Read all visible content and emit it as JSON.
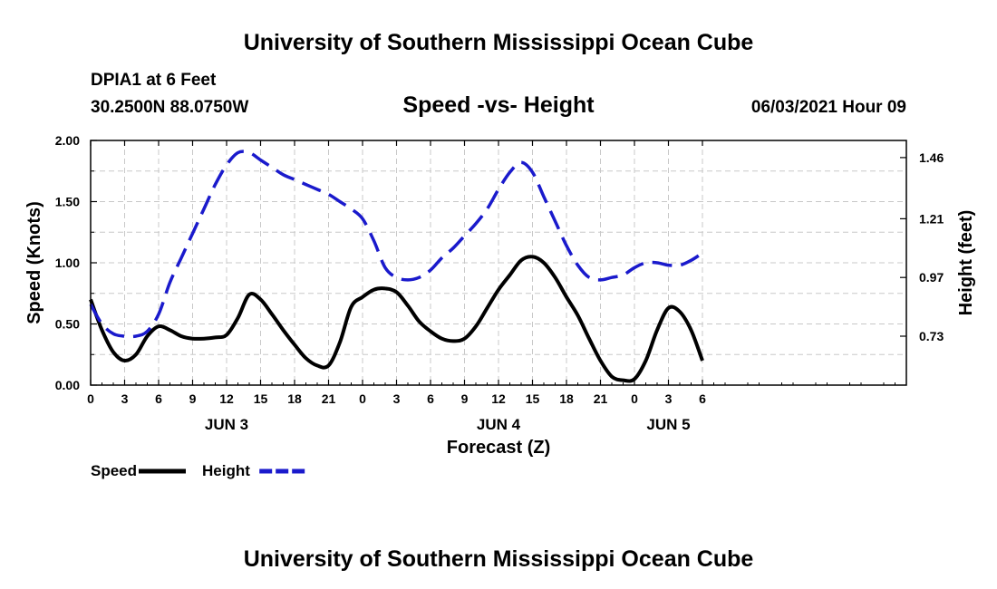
{
  "header": {
    "title": "University of Southern Mississippi Ocean Cube",
    "station": "DPIA1 at 6 Feet",
    "coords": "30.2500N  88.0750W",
    "timestamp": "06/03/2021 Hour 09",
    "footer_title": "University of Southern Mississippi Ocean Cube"
  },
  "chart_data": {
    "type": "line",
    "title": "Speed -vs- Height",
    "xlabel": "Forecast (Z)",
    "ylabel": "Speed (Knots)",
    "y2label": "Height (feet)",
    "xlim": [
      0,
      72
    ],
    "ylim": [
      0,
      2
    ],
    "y2lim": [
      0.53,
      1.53
    ],
    "x_ticks": [
      0,
      3,
      6,
      9,
      12,
      15,
      18,
      21,
      24,
      27,
      30,
      33,
      36,
      39,
      42,
      45,
      48,
      51,
      54
    ],
    "x_tick_labels": [
      "0",
      "3",
      "6",
      "9",
      "12",
      "15",
      "18",
      "21",
      "0",
      "3",
      "6",
      "9",
      "12",
      "15",
      "18",
      "21",
      "0",
      "3",
      "6"
    ],
    "y_ticks": [
      0,
      0.5,
      1,
      1.5,
      2
    ],
    "y_tick_labels": [
      "0.00",
      "0.50",
      "1.00",
      "1.50",
      "2.00"
    ],
    "y2_ticks": [
      0.73,
      0.97,
      1.21,
      1.46
    ],
    "y2_tick_labels": [
      "0.73",
      "0.97",
      "1.21",
      "1.46"
    ],
    "date_labels": [
      {
        "label": "JUN 3",
        "hour": 12
      },
      {
        "label": "JUN 4",
        "hour": 36
      },
      {
        "label": "JUN 5",
        "hour": 51
      }
    ],
    "grid": true,
    "series": [
      {
        "name": "Speed",
        "axis": "left",
        "color": "#000000",
        "dash": "solid",
        "x": [
          0,
          1,
          2,
          3,
          4,
          5,
          6,
          7,
          8,
          9,
          10,
          11,
          12,
          13,
          14,
          15,
          16,
          17,
          18,
          19,
          20,
          21,
          22,
          23,
          24,
          25,
          26,
          27,
          28,
          29,
          30,
          31,
          32,
          33,
          34,
          35,
          36,
          37,
          38,
          39,
          40,
          41,
          42,
          43,
          44,
          45,
          46,
          47,
          48,
          49,
          50,
          51,
          52,
          53,
          54
        ],
        "values": [
          0.7,
          0.45,
          0.27,
          0.2,
          0.25,
          0.4,
          0.48,
          0.45,
          0.4,
          0.38,
          0.38,
          0.39,
          0.41,
          0.55,
          0.74,
          0.7,
          0.58,
          0.45,
          0.33,
          0.22,
          0.16,
          0.16,
          0.35,
          0.64,
          0.72,
          0.78,
          0.79,
          0.76,
          0.65,
          0.52,
          0.44,
          0.38,
          0.36,
          0.38,
          0.48,
          0.63,
          0.78,
          0.9,
          1.02,
          1.05,
          1.0,
          0.88,
          0.72,
          0.57,
          0.38,
          0.2,
          0.07,
          0.04,
          0.05,
          0.2,
          0.45,
          0.63,
          0.6,
          0.45,
          0.2
        ]
      },
      {
        "name": "Height",
        "axis": "right",
        "color": "#1a1acc",
        "dash": "dashed",
        "x": [
          0,
          1,
          2,
          3,
          4,
          5,
          6,
          7,
          8,
          9,
          10,
          11,
          12,
          13,
          14,
          15,
          16,
          17,
          18,
          19,
          20,
          21,
          22,
          23,
          24,
          25,
          26,
          27,
          28,
          29,
          30,
          31,
          32,
          33,
          34,
          35,
          36,
          37,
          38,
          39,
          40,
          41,
          42,
          43,
          44,
          45,
          46,
          47,
          48,
          49,
          50,
          51,
          52,
          53,
          54
        ],
        "values": [
          0.86,
          0.78,
          0.74,
          0.73,
          0.73,
          0.75,
          0.82,
          0.95,
          1.05,
          1.15,
          1.25,
          1.35,
          1.43,
          1.48,
          1.48,
          1.45,
          1.42,
          1.39,
          1.37,
          1.35,
          1.33,
          1.31,
          1.28,
          1.25,
          1.21,
          1.12,
          1.01,
          0.97,
          0.96,
          0.97,
          1.0,
          1.05,
          1.09,
          1.14,
          1.19,
          1.25,
          1.33,
          1.4,
          1.44,
          1.4,
          1.3,
          1.2,
          1.1,
          1.02,
          0.97,
          0.96,
          0.97,
          0.98,
          1.01,
          1.03,
          1.03,
          1.02,
          1.02,
          1.04,
          1.07
        ]
      }
    ],
    "legend": [
      {
        "label": "Speed",
        "color": "#000000",
        "dash": "solid"
      },
      {
        "label": "Height",
        "color": "#1a1acc",
        "dash": "dashed"
      }
    ]
  }
}
